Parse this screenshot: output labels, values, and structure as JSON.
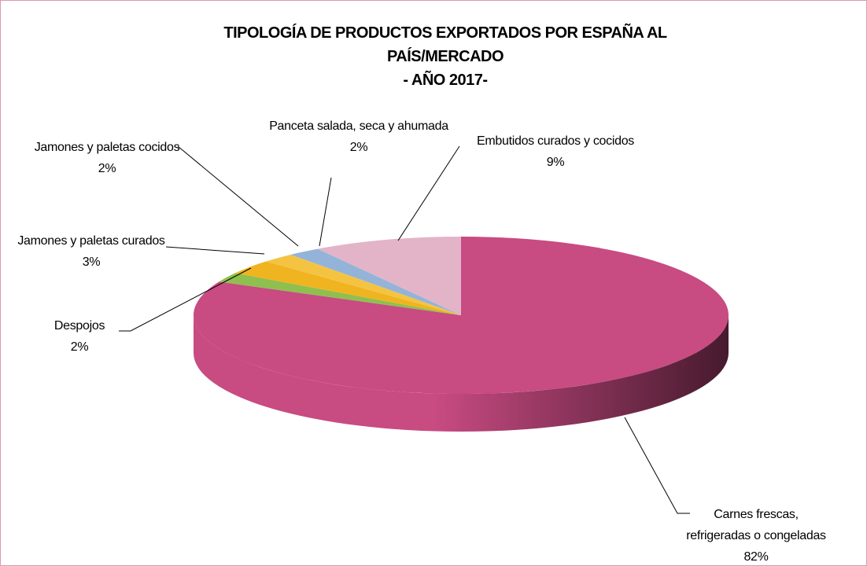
{
  "chart_data": {
    "type": "pie",
    "title": [
      "TIPOLOGÍA DE PRODUCTOS EXPORTADOS POR ESPAÑA AL",
      "PAÍS/MERCADO",
      "- AÑO 2017-"
    ],
    "categories": [
      "Carnes frescas, refrigeradas o congeladas",
      "Despojos",
      "Jamones y paletas curados",
      "Jamones y paletas cocidos",
      "Panceta salada, seca y ahumada",
      "Embutidos curados y cocidos"
    ],
    "values": [
      82,
      2,
      3,
      2,
      2,
      9
    ],
    "value_labels": [
      "82%",
      "2%",
      "3%",
      "2%",
      "2%",
      "9%"
    ],
    "colors": [
      "#c84b82",
      "#8fbf4f",
      "#f0b420",
      "#f5c342",
      "#93b4d8",
      "#e3b4c8"
    ]
  }
}
